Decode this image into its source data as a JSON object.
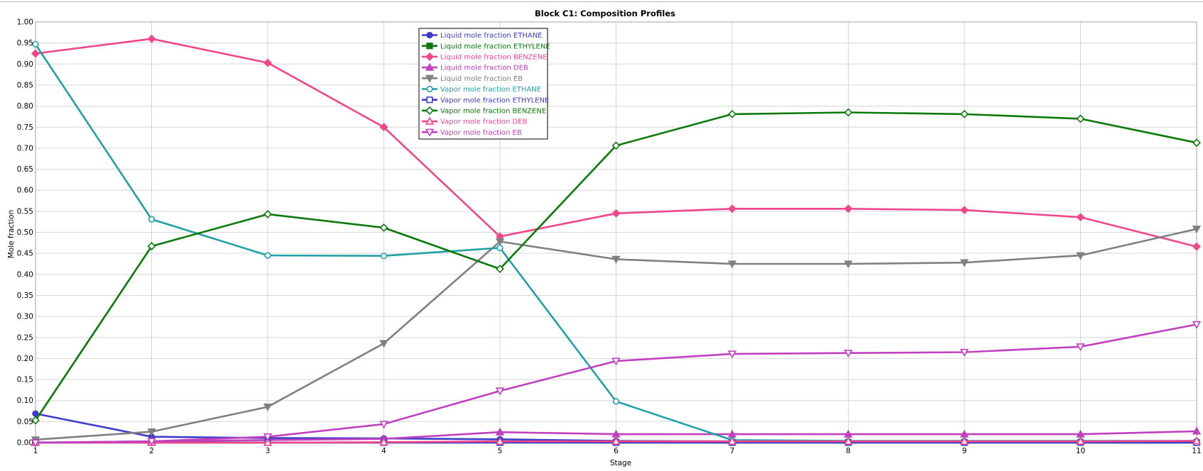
{
  "chart_data": {
    "type": "line",
    "title": "Block C1: Composition Profiles",
    "xlabel": "Stage",
    "ylabel": "Mole fraction",
    "x": [
      1,
      2,
      3,
      4,
      5,
      6,
      7,
      8,
      9,
      10,
      11
    ],
    "xlim": [
      1,
      11
    ],
    "ylim": [
      0,
      1
    ],
    "y_ticks": [
      "0.00",
      "0.05",
      "0.10",
      "0.15",
      "0.20",
      "0.25",
      "0.30",
      "0.35",
      "0.40",
      "0.45",
      "0.50",
      "0.55",
      "0.60",
      "0.65",
      "0.70",
      "0.75",
      "0.80",
      "0.85",
      "0.90",
      "0.95",
      "1.00"
    ],
    "x_ticks": [
      "1",
      "2",
      "3",
      "4",
      "5",
      "6",
      "7",
      "8",
      "9",
      "10",
      "11"
    ],
    "grid": true,
    "legend_position": "top-center",
    "series": [
      {
        "name": "Liquid mole fraction ETHANE",
        "color": "#3c3cc8",
        "marker": "circle",
        "filled": true,
        "values": [
          0.069,
          0.014,
          0.011,
          0.01,
          0.008,
          0.004,
          0.003,
          0.003,
          0.003,
          0.003,
          0.003
        ]
      },
      {
        "name": "Liquid mole fraction ETHYLENE",
        "color": "#0b7a0b",
        "marker": "square",
        "filled": true,
        "values": [
          0.0005,
          0.0004,
          0.0003,
          0.0003,
          0.0003,
          0.0002,
          0.0002,
          0.0002,
          0.0002,
          0.0002,
          0.0002
        ]
      },
      {
        "name": "Liquid mole fraction BENZENE",
        "color": "#f0468c",
        "marker": "diamond",
        "filled": true,
        "values": [
          0.925,
          0.96,
          0.903,
          0.75,
          0.49,
          0.545,
          0.556,
          0.556,
          0.553,
          0.536,
          0.466
        ]
      },
      {
        "name": "Liquid mole fraction DEB",
        "color": "#c040c0",
        "marker": "triangle-up",
        "filled": true,
        "values": [
          0.0,
          0.003,
          0.006,
          0.009,
          0.025,
          0.02,
          0.02,
          0.02,
          0.02,
          0.02,
          0.027
        ]
      },
      {
        "name": "Liquid mole fraction EB",
        "color": "#808080",
        "marker": "triangle-down",
        "filled": true,
        "values": [
          0.007,
          0.026,
          0.085,
          0.236,
          0.478,
          0.436,
          0.425,
          0.425,
          0.428,
          0.445,
          0.508
        ]
      },
      {
        "name": "Vapor mole fraction ETHANE",
        "color": "#22a0a8",
        "marker": "circle",
        "filled": false,
        "values": [
          0.947,
          0.531,
          0.445,
          0.444,
          0.463,
          0.098,
          0.006,
          0.004,
          0.004,
          0.004,
          0.004
        ]
      },
      {
        "name": "Vapor mole fraction ETHYLENE",
        "color": "#3c3cc8",
        "marker": "square",
        "filled": false,
        "values": [
          0.0,
          0.0,
          0.0,
          0.0,
          0.0,
          0.0,
          0.0,
          0.0,
          0.0,
          0.0,
          0.0
        ]
      },
      {
        "name": "Vapor mole fraction BENZENE",
        "color": "#0b7a0b",
        "marker": "diamond",
        "filled": false,
        "values": [
          0.053,
          0.467,
          0.543,
          0.511,
          0.413,
          0.706,
          0.781,
          0.785,
          0.781,
          0.77,
          0.713
        ]
      },
      {
        "name": "Vapor mole fraction DEB",
        "color": "#f0468c",
        "marker": "triangle-up",
        "filled": false,
        "values": [
          0.0,
          0.0,
          0.0,
          0.001,
          0.003,
          0.003,
          0.003,
          0.003,
          0.003,
          0.003,
          0.004
        ]
      },
      {
        "name": "Vapor mole fraction EB",
        "color": "#c040c0",
        "marker": "triangle-down",
        "filled": false,
        "values": [
          0.0,
          0.003,
          0.014,
          0.044,
          0.123,
          0.194,
          0.211,
          0.213,
          0.215,
          0.228,
          0.281
        ]
      }
    ]
  }
}
